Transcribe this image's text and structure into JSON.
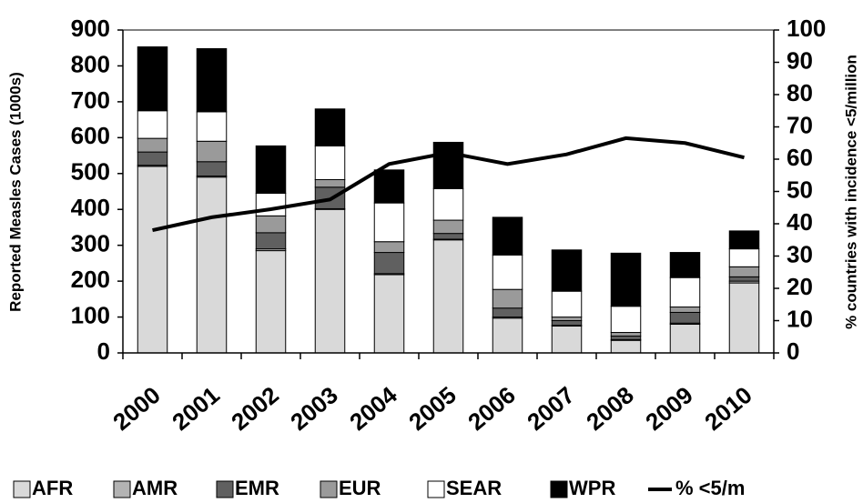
{
  "chart_data": {
    "type": "bar",
    "stacked": true,
    "y_label": "Reported Measles Cases (1000s)",
    "y2_label": "% countries with incidence <5/million",
    "categories": [
      "2000",
      "2001",
      "2002",
      "2003",
      "2004",
      "2005",
      "2006",
      "2007",
      "2008",
      "2009",
      "2010"
    ],
    "series": [
      {
        "name": "AFR",
        "color": "#d9d9d9",
        "values": [
          520,
          490,
          285,
          400,
          218,
          315,
          97,
          75,
          35,
          80,
          195
        ]
      },
      {
        "name": "AMR",
        "color": "#b3b3b3",
        "values": [
          3,
          3,
          5,
          2,
          3,
          2,
          3,
          2,
          2,
          3,
          5
        ]
      },
      {
        "name": "EMR",
        "color": "#606060",
        "values": [
          37,
          40,
          45,
          60,
          59,
          16,
          25,
          13,
          10,
          30,
          12
        ]
      },
      {
        "name": "EUR",
        "color": "#9a9a9a",
        "values": [
          38,
          57,
          47,
          21,
          30,
          37,
          52,
          10,
          10,
          15,
          28
        ]
      },
      {
        "name": "SEAR",
        "color": "#ffffff",
        "values": [
          77,
          82,
          63,
          94,
          108,
          88,
          96,
          72,
          73,
          82,
          50
        ]
      },
      {
        "name": "WPR",
        "color": "#000000",
        "values": [
          178,
          176,
          132,
          103,
          92,
          129,
          105,
          115,
          148,
          70,
          50
        ]
      },
      {
        "name": "% <5/m",
        "type": "line",
        "axis": "y2",
        "color": "#000000",
        "values": [
          38,
          42,
          44.5,
          47.5,
          58.5,
          62,
          58.5,
          61.5,
          66.5,
          65,
          60.5
        ]
      }
    ],
    "ylim": [
      0,
      900
    ],
    "yticks": [
      0,
      100,
      200,
      300,
      400,
      500,
      600,
      700,
      800,
      900
    ],
    "y2lim": [
      0,
      100
    ],
    "y2ticks": [
      0,
      10,
      20,
      30,
      40,
      50,
      60,
      70,
      80,
      90,
      100
    ],
    "legend": "bottom"
  }
}
